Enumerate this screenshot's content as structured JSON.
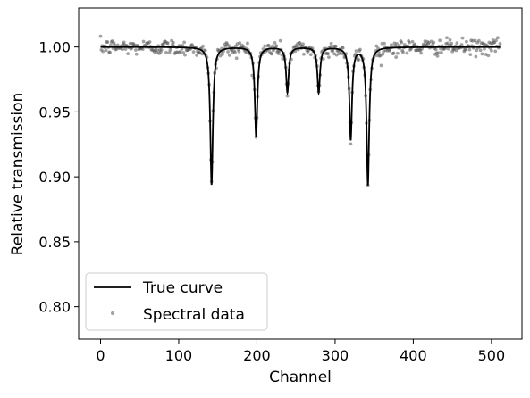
{
  "chart_data": {
    "type": "scatter",
    "title": "",
    "xlabel": "Channel",
    "ylabel": "Relative transmission",
    "xlim": [
      -28,
      539
    ],
    "ylim": [
      0.775,
      1.03
    ],
    "xticks": [
      {
        "value": 0,
        "label": "0"
      },
      {
        "value": 100,
        "label": "100"
      },
      {
        "value": 200,
        "label": "200"
      },
      {
        "value": 300,
        "label": "300"
      },
      {
        "value": 400,
        "label": "400"
      },
      {
        "value": 500,
        "label": "500"
      }
    ],
    "yticks": [
      {
        "value": 0.8,
        "label": "0.80"
      },
      {
        "value": 0.85,
        "label": "0.85"
      },
      {
        "value": 0.9,
        "label": "0.90"
      },
      {
        "value": 0.95,
        "label": "0.95"
      },
      {
        "value": 1.0,
        "label": "1.00"
      }
    ],
    "grid": false,
    "legend_position": "lower-left",
    "series": [
      {
        "name": "True curve",
        "kind": "line",
        "color": "#000000",
        "baseline": 1.0,
        "x_range": [
          0,
          511
        ],
        "peaks": [
          {
            "center": 142,
            "depth": 0.106,
            "halfwidth": 2.0
          },
          {
            "center": 199,
            "depth": 0.069,
            "halfwidth": 2.0
          },
          {
            "center": 239,
            "depth": 0.035,
            "halfwidth": 2.0
          },
          {
            "center": 279,
            "depth": 0.035,
            "halfwidth": 2.0
          },
          {
            "center": 320,
            "depth": 0.071,
            "halfwidth": 2.0
          },
          {
            "center": 342,
            "depth": 0.106,
            "halfwidth": 2.0
          }
        ]
      },
      {
        "name": "Spectral data",
        "kind": "scatter",
        "color": "#555555",
        "n_points": 512,
        "noise_sd": 0.003
      }
    ]
  }
}
